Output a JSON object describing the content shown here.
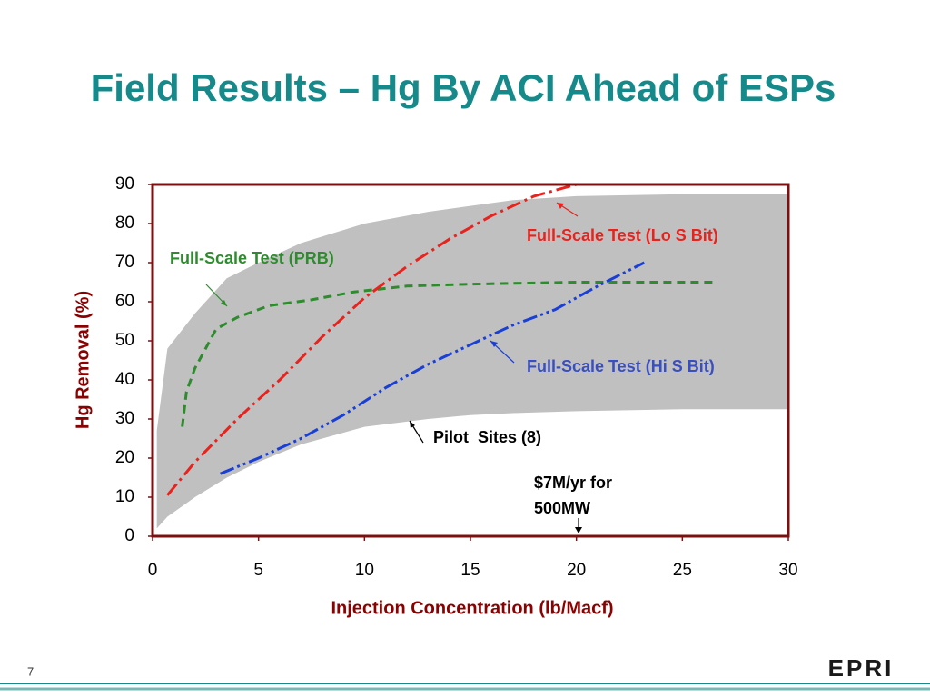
{
  "slide": {
    "page": "7",
    "logo": "EPRI"
  },
  "chart_data": {
    "type": "line",
    "title": "Field Results – Hg By ACI Ahead of ESPs",
    "x_label": "Injection Concentration (lb/Macf)",
    "y_label": "Hg Removal (%)",
    "xlim": [
      0,
      30
    ],
    "xticks": [
      0,
      5,
      10,
      15,
      20,
      25,
      30
    ],
    "ylim": [
      0,
      90
    ],
    "yticks": [
      0,
      10,
      20,
      30,
      40,
      50,
      60,
      70,
      80,
      90
    ],
    "band": {
      "name": "Pilot  Sites (8)",
      "color": "#c0c0c0",
      "x": [
        0.2,
        0.7,
        2,
        3.5,
        5,
        7,
        10,
        13,
        15,
        17,
        20,
        25,
        30
      ],
      "upper": [
        27,
        48,
        57,
        66,
        70,
        75,
        80,
        83,
        84.5,
        86,
        87,
        87.5,
        87.5
      ],
      "lower": [
        2,
        5,
        10,
        15,
        19,
        23.5,
        28,
        30,
        31,
        31.5,
        32,
        32.5,
        32.5
      ]
    },
    "series": [
      {
        "name": "Full-Scale Test (PRB)",
        "color": "#2e8b2e",
        "style": "dashed",
        "x": [
          1.4,
          1.6,
          2,
          2.5,
          3,
          4,
          5.5,
          7.5,
          9.5,
          12,
          15,
          20,
          26.5
        ],
        "values": [
          28,
          37,
          43,
          48,
          53,
          56,
          59,
          60.5,
          62.5,
          64,
          64.5,
          65,
          65
        ]
      },
      {
        "name": "Full-Scale Test (Lo S Bit)",
        "color": "#e8231e",
        "style": "dashdot",
        "x": [
          0.7,
          2,
          4,
          6,
          8,
          10,
          12,
          14,
          16,
          18,
          20
        ],
        "values": [
          10.5,
          19,
          30,
          40,
          51,
          61,
          69,
          76,
          82,
          87,
          90
        ]
      },
      {
        "name": "Full-Scale Test (Hi S Bit)",
        "color": "#1a3fd6",
        "style": "dashdotdot",
        "x": [
          3.2,
          5,
          7,
          9,
          11,
          13,
          15,
          17,
          19,
          21,
          23.2
        ],
        "values": [
          16,
          20,
          25,
          31,
          38,
          44,
          49,
          54,
          58,
          64,
          70
        ]
      }
    ],
    "annotations": [
      [
        "$7M/yr for",
        "500MW"
      ]
    ]
  }
}
